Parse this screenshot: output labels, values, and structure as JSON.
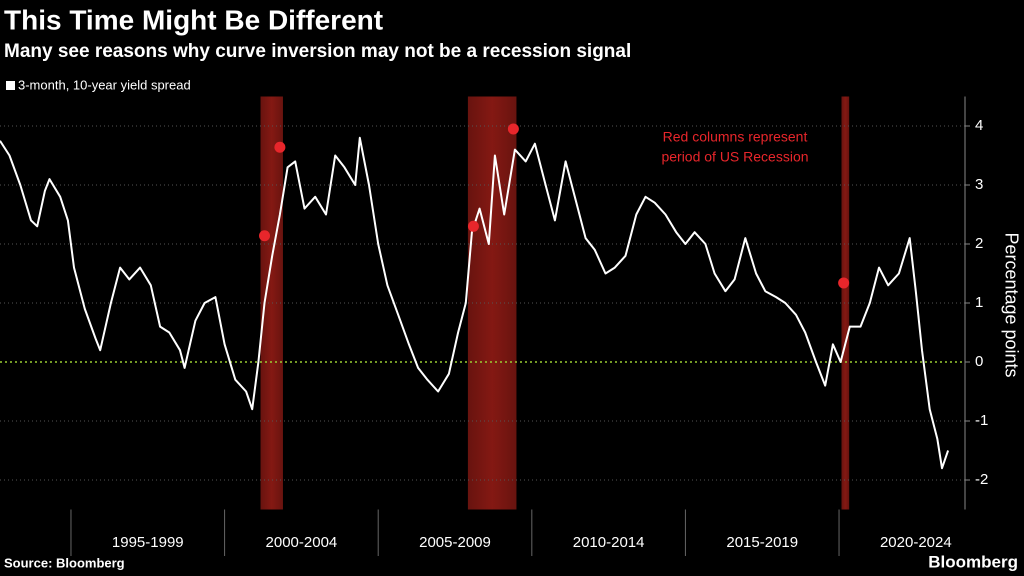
{
  "chart_data": {
    "type": "line",
    "title": "This Time Might Be Different",
    "subtitle": "Many see reasons why curve inversion may not be a recession signal",
    "y_axis_label": "Percentage points",
    "annotation": [
      "Red columns represent",
      "period of US Recession"
    ],
    "source": "Source: Bloomberg",
    "brand": "Bloomberg",
    "xlim": [
      1992.69,
      2024.1
    ],
    "ylim": [
      -2.5,
      4.5
    ],
    "yticks": [
      -2,
      -1,
      0,
      1,
      2,
      3,
      4
    ],
    "grid": true,
    "periods": [
      {
        "start": 1995,
        "end": 2000,
        "label": "1995-1999"
      },
      {
        "start": 2000,
        "end": 2005,
        "label": "2000-2004"
      },
      {
        "start": 2005,
        "end": 2010,
        "label": "2005-2009"
      },
      {
        "start": 2010,
        "end": 2015,
        "label": "2010-2014"
      },
      {
        "start": 2015,
        "end": 2020,
        "label": "2015-2019"
      },
      {
        "start": 2020,
        "end": 2025,
        "label": "2020-2024"
      }
    ],
    "recessions": [
      {
        "start": 2001.17,
        "end": 2001.9
      },
      {
        "start": 2007.92,
        "end": 2009.5
      },
      {
        "start": 2020.08,
        "end": 2020.33
      }
    ],
    "markers": {
      "x": [
        2001.3,
        2001.8,
        2008.1,
        2009.4,
        2020.15
      ],
      "values": [
        2.14,
        3.64,
        2.3,
        3.95,
        1.34
      ],
      "color": "#e8262b"
    },
    "recession_color": "#8b1a14",
    "zero_line_color": "#9acd32",
    "series": [
      {
        "name": "3-month, 10-year yield spread",
        "color": "#ffffff",
        "x": [
          1992.69,
          1993.0,
          1993.35,
          1993.7,
          1993.9,
          1994.15,
          1994.3,
          1994.65,
          1994.9,
          1995.1,
          1995.45,
          1995.8,
          1995.95,
          1996.3,
          1996.6,
          1996.9,
          1997.25,
          1997.6,
          1997.9,
          1998.2,
          1998.55,
          1998.7,
          1999.05,
          1999.35,
          1999.7,
          2000.0,
          2000.35,
          2000.7,
          2000.9,
          2001.1,
          2001.3,
          2001.55,
          2001.8,
          2002.05,
          2002.3,
          2002.6,
          2002.95,
          2003.3,
          2003.6,
          2003.9,
          2004.25,
          2004.4,
          2004.7,
          2005.0,
          2005.3,
          2005.65,
          2006.0,
          2006.3,
          2006.6,
          2006.95,
          2007.3,
          2007.6,
          2007.85,
          2008.05,
          2008.3,
          2008.6,
          2008.8,
          2009.1,
          2009.45,
          2009.8,
          2010.1,
          2010.45,
          2010.75,
          2011.1,
          2011.4,
          2011.75,
          2012.05,
          2012.4,
          2012.7,
          2013.05,
          2013.4,
          2013.7,
          2014.0,
          2014.35,
          2014.7,
          2015.0,
          2015.3,
          2015.65,
          2015.95,
          2016.3,
          2016.6,
          2016.95,
          2017.3,
          2017.6,
          2017.95,
          2018.25,
          2018.6,
          2018.9,
          2019.25,
          2019.55,
          2019.8,
          2020.05,
          2020.2,
          2020.35,
          2020.7,
          2021.0,
          2021.3,
          2021.6,
          2021.95,
          2022.3,
          2022.5,
          2022.7,
          2022.95,
          2023.2,
          2023.35,
          2023.55
        ],
        "values": [
          3.75,
          3.5,
          3.0,
          2.4,
          2.3,
          2.9,
          3.1,
          2.8,
          2.4,
          1.6,
          0.9,
          0.4,
          0.2,
          1.0,
          1.6,
          1.4,
          1.6,
          1.3,
          0.6,
          0.5,
          0.2,
          -0.1,
          0.7,
          1.0,
          1.1,
          0.3,
          -0.3,
          -0.5,
          -0.8,
          0.0,
          1.0,
          1.8,
          2.5,
          3.3,
          3.4,
          2.6,
          2.8,
          2.5,
          3.5,
          3.3,
          3.0,
          3.8,
          3.0,
          2.0,
          1.3,
          0.8,
          0.3,
          -0.1,
          -0.3,
          -0.5,
          -0.2,
          0.5,
          1.0,
          2.2,
          2.6,
          2.0,
          3.5,
          2.5,
          3.6,
          3.4,
          3.7,
          3.0,
          2.4,
          3.4,
          2.8,
          2.1,
          1.9,
          1.5,
          1.6,
          1.8,
          2.5,
          2.8,
          2.7,
          2.5,
          2.2,
          2.0,
          2.2,
          2.0,
          1.5,
          1.2,
          1.4,
          2.1,
          1.5,
          1.2,
          1.1,
          1.0,
          0.8,
          0.5,
          0.0,
          -0.4,
          0.3,
          0.0,
          0.3,
          0.6,
          0.6,
          1.0,
          1.6,
          1.3,
          1.5,
          2.1,
          1.2,
          0.2,
          -0.8,
          -1.3,
          -1.8,
          -1.5
        ]
      }
    ]
  }
}
